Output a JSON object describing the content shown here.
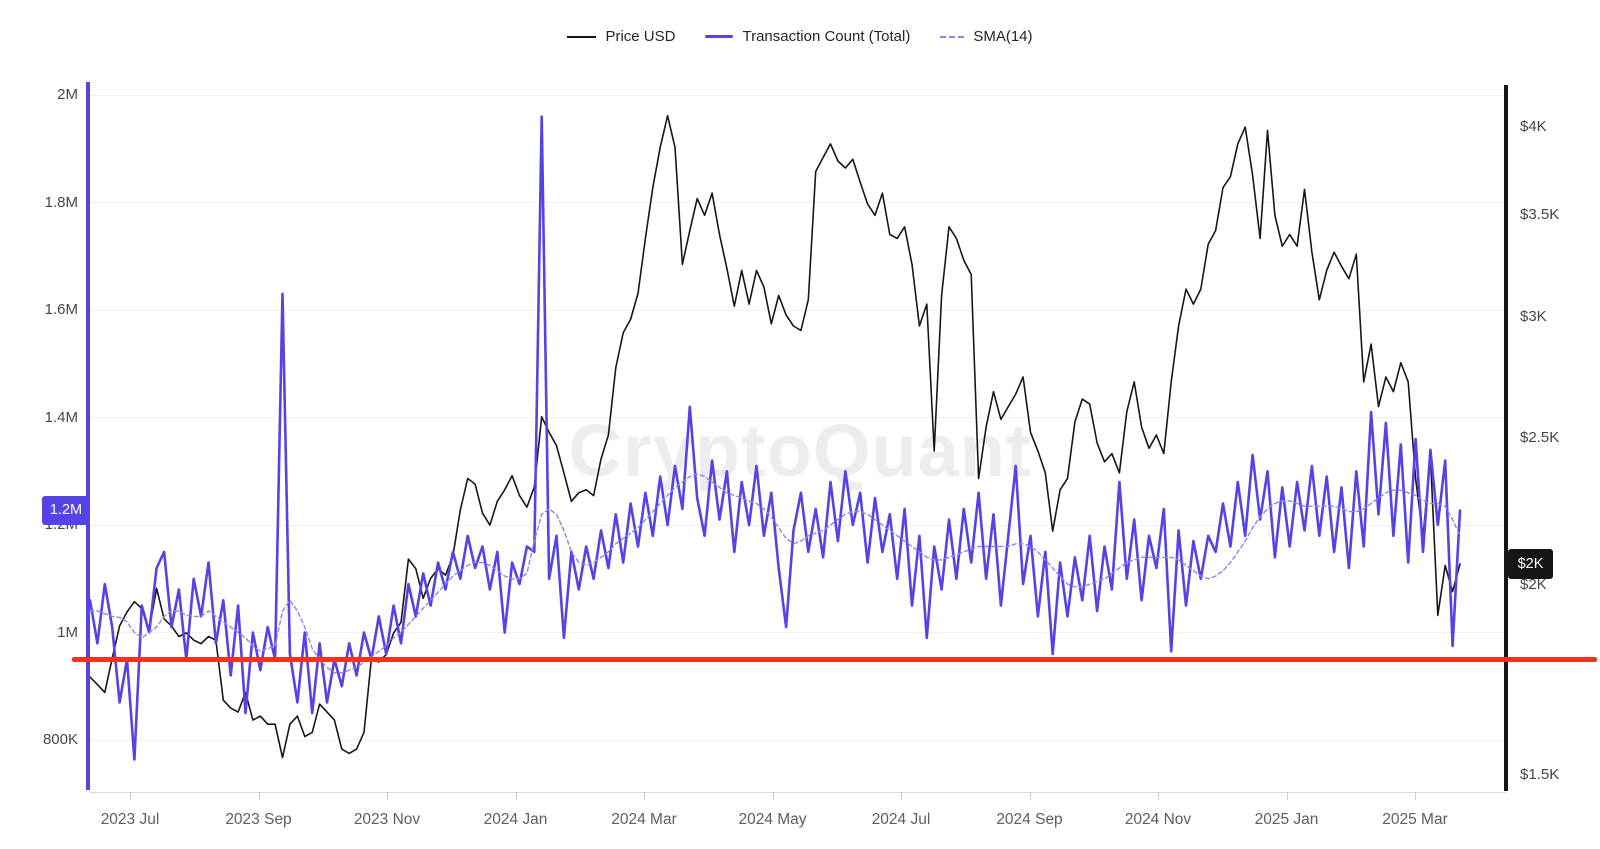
{
  "watermark": "CryptoQuant",
  "legend": {
    "items": [
      {
        "label": "Price USD",
        "swatch": "price-line-swatch",
        "color": "#17171a"
      },
      {
        "label": "Transaction Count (Total)",
        "swatch": "tx-line-swatch",
        "color": "#5443e6"
      },
      {
        "label": "SMA(14)",
        "swatch": "sma-dashed-swatch",
        "color": "#8f85ee"
      }
    ]
  },
  "axis_badges": {
    "left": {
      "label": "1.2M",
      "value_k": 1227,
      "color": "#5443e6"
    },
    "right": {
      "label": "$2K",
      "value_usd": 2065,
      "color": "#141517"
    }
  },
  "chart_data": {
    "type": "line",
    "title": "",
    "x_tick_labels": [
      "2023 Jul",
      "2023 Sep",
      "2023 Nov",
      "2024 Jan",
      "2024 Mar",
      "2024 May",
      "2024 Jul",
      "2024 Sep",
      "2024 Nov",
      "2025 Jan",
      "2025 Mar"
    ],
    "x_range": [
      "2023-06-13",
      "2025-03-21"
    ],
    "left_axis": {
      "scale": "linear",
      "tick_labels": [
        "2M",
        "1.8M",
        "1.6M",
        "1.4M",
        "1.2M",
        "1M",
        "800K"
      ],
      "tick_values_k": [
        2000,
        1800,
        1600,
        1400,
        1200,
        1000,
        800
      ]
    },
    "right_axis": {
      "scale": "log",
      "tick_labels": [
        "$4K",
        "$3.5K",
        "$3K",
        "$2.5K",
        "$2K",
        "$1.5K"
      ],
      "tick_values_usd": [
        4000,
        3500,
        3000,
        2500,
        2000,
        1500
      ]
    },
    "reference_line": {
      "value_k": 950,
      "color": "#f5301d"
    },
    "grid": true,
    "legend_position": "top-center",
    "series": [
      {
        "name": "Price USD",
        "axis": "right",
        "color": "#17171a",
        "width": 1.6,
        "dash": null,
        "values": [
          1740,
          1720,
          1700,
          1790,
          1880,
          1920,
          1950,
          1930,
          1870,
          1990,
          1900,
          1880,
          1850,
          1860,
          1840,
          1830,
          1850,
          1840,
          1680,
          1660,
          1650,
          1700,
          1630,
          1640,
          1620,
          1620,
          1540,
          1620,
          1640,
          1590,
          1600,
          1670,
          1650,
          1630,
          1560,
          1550,
          1560,
          1600,
          1790,
          1780,
          1800,
          1860,
          1890,
          2080,
          2050,
          1960,
          2020,
          2050,
          2030,
          2090,
          2240,
          2350,
          2330,
          2230,
          2190,
          2270,
          2310,
          2360,
          2290,
          2250,
          2320,
          2580,
          2520,
          2470,
          2370,
          2270,
          2300,
          2310,
          2290,
          2420,
          2510,
          2780,
          2930,
          2990,
          3110,
          3380,
          3650,
          3880,
          4070,
          3880,
          3250,
          3420,
          3590,
          3500,
          3620,
          3400,
          3230,
          3050,
          3220,
          3060,
          3220,
          3140,
          2970,
          3100,
          3010,
          2960,
          2940,
          3080,
          3740,
          3820,
          3900,
          3800,
          3760,
          3810,
          3680,
          3560,
          3500,
          3620,
          3400,
          3380,
          3440,
          3250,
          2960,
          3060,
          2450,
          3100,
          3440,
          3380,
          3270,
          3200,
          2350,
          2540,
          2680,
          2570,
          2620,
          2670,
          2740,
          2520,
          2450,
          2370,
          2170,
          2310,
          2350,
          2560,
          2650,
          2630,
          2480,
          2410,
          2440,
          2370,
          2600,
          2720,
          2540,
          2460,
          2510,
          2440,
          2720,
          2960,
          3130,
          3060,
          3130,
          3350,
          3420,
          3650,
          3710,
          3900,
          4000,
          3720,
          3380,
          3980,
          3500,
          3340,
          3400,
          3340,
          3640,
          3310,
          3080,
          3220,
          3310,
          3240,
          3180,
          3300,
          2720,
          2880,
          2620,
          2740,
          2680,
          2800,
          2720,
          2350,
          2150,
          2430,
          1910,
          2060,
          1980,
          2065
        ]
      },
      {
        "name": "Transaction Count (Total)",
        "axis": "left",
        "color": "#5443e6",
        "width": 2.6,
        "dash": null,
        "values_k": [
          1060,
          980,
          1090,
          1010,
          870,
          950,
          764,
          1050,
          1000,
          1120,
          1150,
          1010,
          1080,
          950,
          1100,
          1030,
          1130,
          980,
          1060,
          920,
          1050,
          850,
          1000,
          930,
          1010,
          950,
          1630,
          960,
          870,
          1000,
          850,
          980,
          870,
          950,
          900,
          980,
          920,
          1000,
          950,
          1030,
          960,
          1050,
          980,
          1090,
          1030,
          1110,
          1050,
          1130,
          1080,
          1150,
          1100,
          1180,
          1120,
          1160,
          1080,
          1150,
          1000,
          1130,
          1090,
          1160,
          1150,
          1960,
          1100,
          1180,
          990,
          1150,
          1080,
          1160,
          1100,
          1190,
          1120,
          1220,
          1130,
          1240,
          1160,
          1260,
          1180,
          1290,
          1200,
          1310,
          1230,
          1420,
          1250,
          1180,
          1320,
          1210,
          1300,
          1150,
          1280,
          1200,
          1310,
          1180,
          1260,
          1120,
          1010,
          1190,
          1260,
          1150,
          1230,
          1140,
          1280,
          1170,
          1300,
          1200,
          1260,
          1130,
          1250,
          1150,
          1220,
          1100,
          1230,
          1050,
          1180,
          990,
          1160,
          1080,
          1210,
          1100,
          1230,
          1130,
          1260,
          1100,
          1220,
          1050,
          1180,
          1310,
          1090,
          1180,
          1030,
          1150,
          960,
          1130,
          1030,
          1140,
          1060,
          1180,
          1040,
          1160,
          1080,
          1280,
          1100,
          1210,
          1060,
          1180,
          1120,
          1230,
          965,
          1190,
          1050,
          1170,
          1100,
          1180,
          1150,
          1240,
          1160,
          1280,
          1180,
          1330,
          1210,
          1300,
          1140,
          1270,
          1160,
          1280,
          1190,
          1310,
          1180,
          1290,
          1150,
          1270,
          1120,
          1300,
          1160,
          1410,
          1220,
          1390,
          1180,
          1350,
          1130,
          1360,
          1150,
          1340,
          1200,
          1320,
          975,
          1227
        ]
      },
      {
        "name": "SMA(14)",
        "axis": "left",
        "color": "#8f85ee",
        "width": 1.4,
        "dash": "4 3",
        "values_k": [
          1040,
          1040,
          1035,
          1030,
          1028,
          1020,
          1000,
          990,
          1000,
          1010,
          1030,
          1040,
          1040,
          1032,
          1030,
          1030,
          1040,
          1030,
          1020,
          1010,
          1000,
          990,
          975,
          965,
          970,
          975,
          1040,
          1060,
          1040,
          1010,
          970,
          950,
          935,
          925,
          925,
          930,
          935,
          945,
          955,
          965,
          975,
          990,
          1000,
          1015,
          1030,
          1045,
          1060,
          1075,
          1090,
          1105,
          1115,
          1125,
          1130,
          1130,
          1125,
          1115,
          1105,
          1100,
          1100,
          1110,
          1170,
          1220,
          1230,
          1220,
          1190,
          1150,
          1130,
          1125,
          1130,
          1140,
          1150,
          1165,
          1175,
          1185,
          1195,
          1210,
          1225,
          1240,
          1255,
          1270,
          1280,
          1290,
          1295,
          1290,
          1280,
          1270,
          1260,
          1255,
          1250,
          1245,
          1240,
          1230,
          1215,
          1195,
          1175,
          1165,
          1170,
          1180,
          1185,
          1190,
          1200,
          1210,
          1220,
          1225,
          1225,
          1220,
          1210,
          1200,
          1190,
          1180,
          1170,
          1160,
          1150,
          1140,
          1135,
          1135,
          1140,
          1145,
          1150,
          1155,
          1160,
          1160,
          1160,
          1160,
          1160,
          1165,
          1165,
          1160,
          1150,
          1135,
          1120,
          1105,
          1090,
          1085,
          1085,
          1090,
          1095,
          1100,
          1110,
          1120,
          1130,
          1135,
          1140,
          1140,
          1140,
          1140,
          1140,
          1135,
          1125,
          1115,
          1105,
          1100,
          1105,
          1115,
          1130,
          1150,
          1170,
          1195,
          1215,
          1230,
          1240,
          1245,
          1245,
          1240,
          1235,
          1235,
          1235,
          1235,
          1235,
          1230,
          1225,
          1225,
          1230,
          1240,
          1250,
          1260,
          1265,
          1265,
          1260,
          1255,
          1245,
          1240,
          1240,
          1235,
          1210,
          1180
        ]
      }
    ]
  }
}
